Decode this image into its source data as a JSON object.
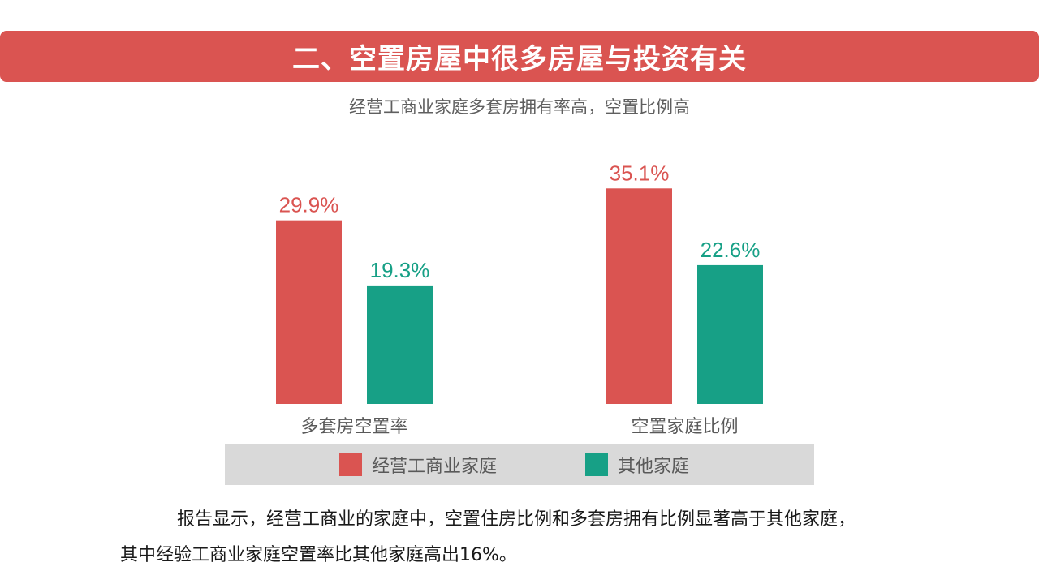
{
  "title": "二、空置房屋中很多房屋与投资有关",
  "subtitle": "经营工商业家庭多套房拥有率高，空置比例高",
  "colors": {
    "banner": "#da5451",
    "series1": "#da5451",
    "series2": "#17a086",
    "legend_bg": "#d9d9d9"
  },
  "chart_data": {
    "type": "bar",
    "categories": [
      "多套房空置率",
      "空置家庭比例"
    ],
    "series": [
      {
        "name": "经营工商业家庭",
        "values": [
          29.9,
          35.1
        ],
        "labels": [
          "29.9%",
          "35.1%"
        ],
        "color": "#da5451"
      },
      {
        "name": "其他家庭",
        "values": [
          19.3,
          22.6
        ],
        "labels": [
          "19.3%",
          "22.6%"
        ],
        "color": "#17a086"
      }
    ],
    "legend_position": "bottom",
    "grid": false
  },
  "paragraph": {
    "line1": "报告显示，经营工商业的家庭中，空置住房比例和多套房拥有比例显著高于其他家庭，",
    "line2": "其中经验工商业家庭空置率比其他家庭高出16%。"
  }
}
